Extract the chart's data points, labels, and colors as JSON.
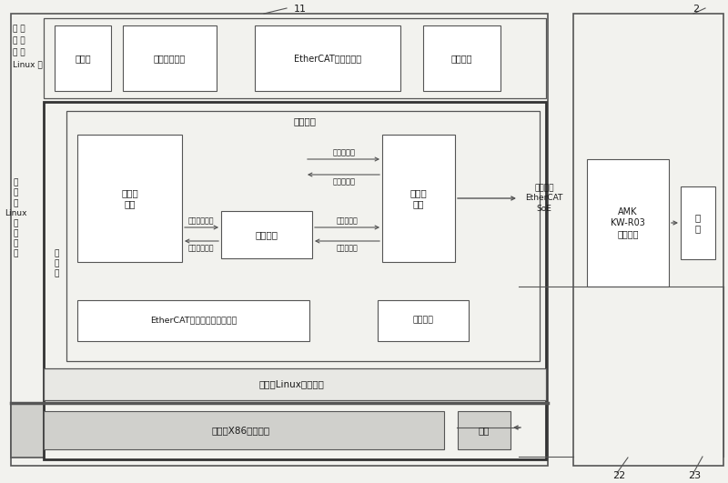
{
  "bg_color": "#f2f2ee",
  "border_color": "#555555",
  "box_color": "#ffffff",
  "text_color": "#1a1a1a",
  "fig_width": 8.0,
  "fig_height": 5.31,
  "label_11": "11",
  "label_2": "2",
  "label_22": "22",
  "label_23": "23",
  "user_row_items": [
    "应用层",
    "主轴转速接口",
    "EtherCAT通信协议栈",
    "应用接口"
  ],
  "soft_circuit_label": "软电路层",
  "motion_ctrl_label": "运动控\n制层",
  "spindle_ctrl_label": "主轴控\n制层",
  "unit_conv_label": "单位换算",
  "master_ctrl_word": "主站控制字",
  "drive_state_word": "驱动状态字",
  "speed_cmd": "速度指令值",
  "speed_fb": "速度反馈值",
  "spindle_out": "主轴速度输出",
  "spindle_in": "主轴速度输入",
  "drive_layer": "驱动层",
  "ethercat_kernel": "EtherCAT通信协议栈内核驱动",
  "nic_driver": "网卡驱动",
  "embedded_linux": "嵌入式Linux操作系统",
  "embedded_x86": "嵌入式X86硬件平台",
  "nic_label": "网卡",
  "comm_protocol": "通信协议\nEtherCAT\nSoE",
  "amk_driver": "AMK\nKW-R03\n伺服驱动",
  "motor": "电\n机",
  "kernel_label": "嵌\n入\n式\nLinux\n内\n核\n空\n间",
  "drive_layer_v": "驱\n动\n层",
  "user_space_label": "嵌 用\n入 户\n式 空\nLinux 间"
}
